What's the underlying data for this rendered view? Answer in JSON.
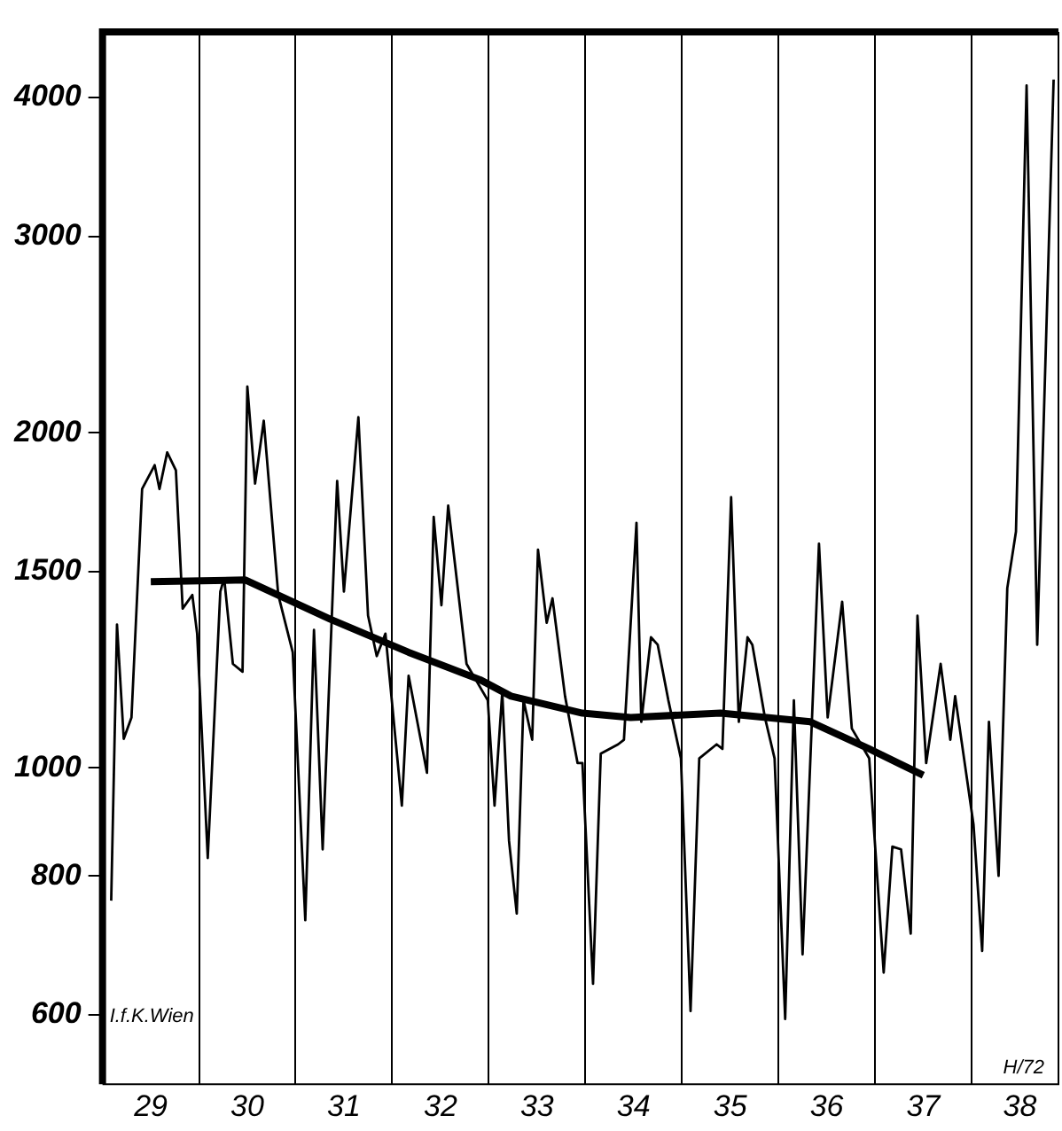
{
  "chart_data": {
    "type": "line",
    "log": "y",
    "grid": "x",
    "legend": false,
    "marker": "none",
    "annotations": [
      "I.f.K.Wien",
      "H/72"
    ],
    "xlim": [
      28.5,
      38.4
    ],
    "ylim": [
      520,
      4580
    ],
    "xticks": [
      29,
      {
        "value": 29.5,
        "label": null
      },
      30,
      {
        "value": 30.5,
        "label": null
      },
      31,
      {
        "value": 31.5,
        "label": null
      },
      32,
      {
        "value": 32.5,
        "label": null
      },
      33,
      {
        "value": 33.5,
        "label": null
      },
      34,
      {
        "value": 34.5,
        "label": null
      },
      35,
      {
        "value": 35.5,
        "label": null
      },
      36,
      {
        "value": 36.5,
        "label": null
      },
      37,
      {
        "value": 37.5,
        "label": null
      },
      38
    ],
    "yticks": [
      600,
      800,
      1000,
      1500,
      2000,
      3000,
      4000
    ],
    "series": [
      {
        "color": "#000000",
        "x": [
          28.59,
          28.65,
          28.72,
          28.8,
          28.91,
          29.04,
          29.09,
          29.17,
          29.26,
          29.33,
          29.43,
          29.48,
          29.59,
          29.72,
          29.76,
          29.85,
          29.95,
          30.0,
          30.08,
          30.17,
          30.32,
          30.47,
          30.6,
          30.69,
          30.78,
          30.93,
          31.0,
          31.15,
          31.25,
          31.34,
          31.43,
          31.6,
          31.67,
          31.86,
          31.93,
          32.01,
          32.08,
          32.27,
          32.49,
          32.56,
          32.64,
          32.71,
          32.79,
          32.86,
          32.95,
          33.01,
          33.1,
          33.16,
          33.29,
          33.42,
          33.47,
          33.58,
          33.66,
          33.84,
          33.9,
          34.03,
          34.08,
          34.18,
          34.25,
          34.36,
          34.49,
          34.59,
          34.68,
          34.86,
          34.92,
          35.01,
          35.09,
          35.18,
          35.23,
          35.36,
          35.46,
          35.57,
          35.66,
          35.75,
          35.92,
          36.01,
          36.16,
          36.26,
          36.44,
          36.59,
          36.68,
          36.77,
          36.87,
          36.94,
          37.03,
          37.18,
          37.28,
          37.33,
          37.52,
          37.61,
          37.68,
          37.78,
          37.87,
          37.96,
          38.07,
          38.18,
          38.35
        ],
        "values": [
          760,
          1345,
          1062,
          1110,
          1780,
          1870,
          1780,
          1920,
          1850,
          1390,
          1430,
          1320,
          830,
          1440,
          1480,
          1240,
          1220,
          2200,
          1800,
          2050,
          1430,
          1270,
          730,
          1330,
          845,
          1810,
          1440,
          2065,
          1370,
          1260,
          1320,
          925,
          1210,
          990,
          1680,
          1400,
          1720,
          1240,
          1150,
          925,
          1170,
          860,
          740,
          1150,
          1060,
          1570,
          1350,
          1420,
          1160,
          1010,
          1010,
          640,
          1030,
          1050,
          1060,
          1660,
          1100,
          1310,
          1290,
          1150,
          1020,
          605,
          1020,
          1050,
          1040,
          1750,
          1100,
          1310,
          1290,
          1110,
          1020,
          595,
          1150,
          680,
          1590,
          1110,
          1410,
          1085,
          1020,
          655,
          850,
          845,
          710,
          1370,
          1010,
          1240,
          1060,
          1160,
          890,
          685,
          1100,
          800,
          1450,
          1630,
          4100,
          1290,
          4150
        ]
      },
      {
        "color": "#000000",
        "x": [
          29.0,
          29.98,
          30.86,
          31.67,
          32.41,
          32.73,
          33.47,
          33.97,
          34.9,
          35.83,
          36.44,
          37.0
        ],
        "values": [
          1470,
          1475,
          1360,
          1270,
          1200,
          1160,
          1120,
          1110,
          1120,
          1100,
          1040,
          985
        ]
      }
    ]
  }
}
